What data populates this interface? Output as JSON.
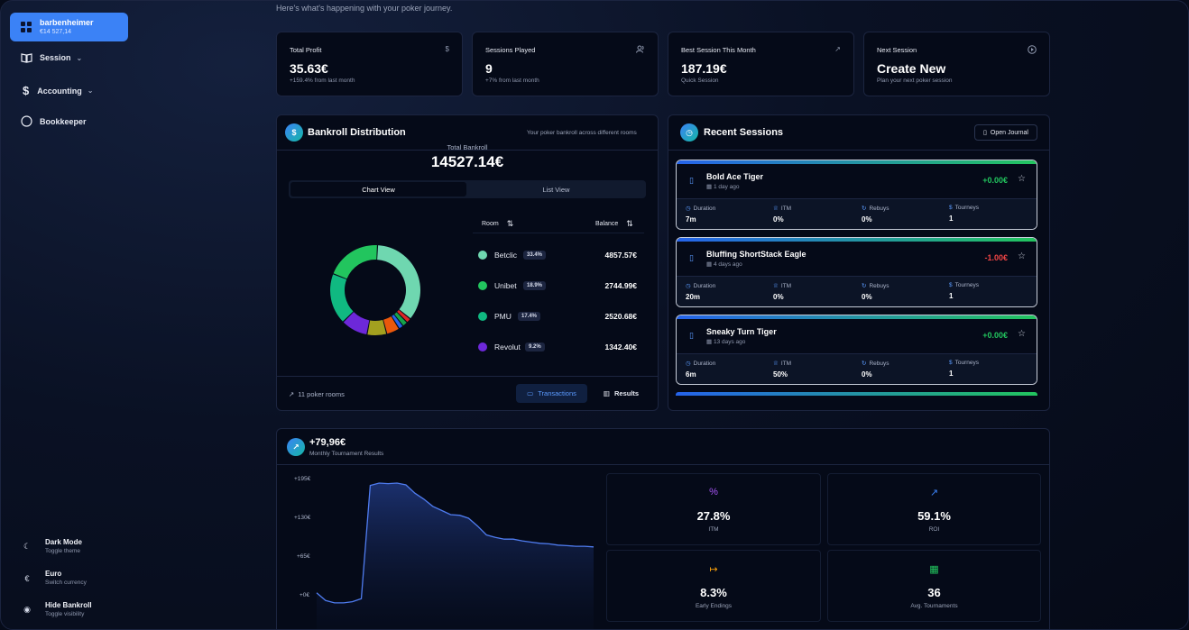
{
  "sidebar": {
    "user_name": "barbenheimer",
    "user_balance": "€14 527,14",
    "nav": [
      {
        "label": "Session",
        "icon": "book-icon"
      },
      {
        "label": "Accounting",
        "icon": "dollar-icon"
      },
      {
        "label": "Bookkeeper",
        "icon": "circle-icon"
      }
    ],
    "bottom": [
      {
        "title": "Dark Mode",
        "sub": "Toggle theme",
        "glyph": "☾"
      },
      {
        "title": "Euro",
        "sub": "Switch currency",
        "glyph": "€"
      },
      {
        "title": "Hide Bankroll",
        "sub": "Toggle visibility",
        "glyph": "◉"
      }
    ]
  },
  "header": {
    "subtitle": "Here's what's happening with your poker journey."
  },
  "stats": [
    {
      "label": "Total Profit",
      "value": "35.63€",
      "sub": "+159.4% from last month",
      "glyph": "$"
    },
    {
      "label": "Sessions Played",
      "value": "9",
      "sub": "+7% from last month",
      "glyph": "👥"
    },
    {
      "label": "Best Session This Month",
      "value": "187.19€",
      "sub": "Quick Session",
      "glyph": "↗"
    },
    {
      "label": "Next Session",
      "value": "Create New",
      "sub": "Plan your next poker session",
      "glyph": "▷"
    }
  ],
  "bankroll": {
    "title": "Bankroll Distribution",
    "description": "Your poker bankroll across different rooms",
    "total_label": "Total Bankroll",
    "total_value": "14527.14€",
    "tab_chart": "Chart View",
    "tab_list": "List View",
    "col_room": "Room",
    "col_balance": "Balance",
    "rooms": [
      {
        "name": "Betclic",
        "pct": "33.4%",
        "balance": "4857.57€",
        "color": "#6fd7b0"
      },
      {
        "name": "Unibet",
        "pct": "18.9%",
        "balance": "2744.99€",
        "color": "#22c55e"
      },
      {
        "name": "PMU",
        "pct": "17.4%",
        "balance": "2520.68€",
        "color": "#10b981"
      },
      {
        "name": "Revolut",
        "pct": "9.2%",
        "balance": "1342.40€",
        "color": "#6d28d9"
      }
    ],
    "donut": [
      {
        "value": 33.4,
        "color": "#6fd7b0"
      },
      {
        "value": 1.6,
        "color": "#dc2626"
      },
      {
        "value": 1.8,
        "color": "#16a34a"
      },
      {
        "value": 1.6,
        "color": "#2563eb"
      },
      {
        "value": 4.5,
        "color": "#ea580c"
      },
      {
        "value": 6.7,
        "color": "#a3a01f"
      },
      {
        "value": 9.2,
        "color": "#6d28d9"
      },
      {
        "value": 17.4,
        "color": "#10b981"
      },
      {
        "value": 18.9,
        "color": "#22c55e"
      }
    ],
    "footer_rooms": "11 poker rooms",
    "btn_transactions": "Transactions",
    "btn_results": "Results"
  },
  "recent": {
    "title": "Recent Sessions",
    "open_journal": "Open Journal",
    "metric_labels": {
      "duration": "Duration",
      "itm": "ITM",
      "rebuys": "Rebuys",
      "tourneys": "Tourneys"
    },
    "sessions": [
      {
        "name": "Bold Ace Tiger",
        "date": "1 day ago",
        "result": "+0.00€",
        "result_color": "#22c55e",
        "duration": "7m",
        "itm": "0%",
        "rebuys": "0%",
        "tourneys": "1"
      },
      {
        "name": "Bluffing ShortStack Eagle",
        "date": "4 days ago",
        "result": "-1.00€",
        "result_color": "#ef4444",
        "duration": "20m",
        "itm": "0%",
        "rebuys": "0%",
        "tourneys": "1"
      },
      {
        "name": "Sneaky Turn Tiger",
        "date": "13 days ago",
        "result": "+0.00€",
        "result_color": "#22c55e",
        "duration": "6m",
        "itm": "50%",
        "rebuys": "0%",
        "tourneys": "1"
      }
    ]
  },
  "monthly": {
    "value": "+79,96€",
    "label": "Monthly Tournament Results",
    "tiles": [
      {
        "value": "27.8%",
        "label": "ITM",
        "glyph": "%",
        "color": "#a855f7"
      },
      {
        "value": "59.1%",
        "label": "ROI",
        "glyph": "↗",
        "color": "#3b82f6"
      },
      {
        "value": "8.3%",
        "label": "Early Endings",
        "glyph": "↦",
        "color": "#f59e0b"
      },
      {
        "value": "36",
        "label": "Avg. Tournaments",
        "glyph": "▦",
        "color": "#22c55e"
      }
    ]
  },
  "chart_data": {
    "type": "area",
    "title": "",
    "xlabel": "",
    "ylabel": "",
    "y_ticks": [
      "+195€",
      "+130€",
      "+65€",
      "+0€"
    ],
    "ylim": [
      0,
      195
    ],
    "x": [
      0,
      1,
      2,
      3,
      4,
      5,
      6,
      7,
      8,
      9,
      10,
      11,
      12,
      13,
      14,
      15,
      16,
      17,
      18,
      19,
      20,
      21,
      22,
      23,
      24,
      25,
      26,
      27,
      28,
      29,
      30,
      31
    ],
    "values": [
      5,
      -8,
      -12,
      -12,
      -10,
      -5,
      185,
      189,
      188,
      189,
      186,
      172,
      162,
      150,
      143,
      136,
      135,
      130,
      117,
      102,
      98,
      95,
      95,
      92,
      90,
      88,
      87,
      85,
      84,
      83,
      83,
      82
    ]
  }
}
